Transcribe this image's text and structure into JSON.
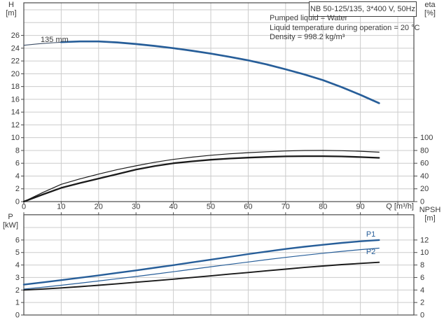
{
  "header": {
    "title_box": "NB 50-125/135, 3*400 V, 50Hz",
    "info_lines": [
      "Pumped liquid = Water",
      "Liquid temperature during operation = 20 °C",
      "Density = 998.2 kg/m³"
    ]
  },
  "labels": {
    "h_axis_1": "H",
    "h_axis_2": "[m]",
    "eta_axis_1": "eta",
    "eta_axis_2": "[%]",
    "p_axis_1": "P",
    "p_axis_2": "[kW]",
    "npsh_axis_1": "NPSH",
    "npsh_axis_2": "[m]",
    "q_axis": "Q [m³/h]"
  },
  "colors": {
    "blue": "#275e99",
    "blue_thin_lead": "#3d4e66",
    "black": "#1a1a1a",
    "grid": "#cccccc",
    "frame": "#4b4b4b",
    "text": "#3a3a3a"
  },
  "chart_data": [
    {
      "type": "line",
      "title": "Pump head and efficiency curves",
      "x_axis": {
        "label": "Q [m³/h]",
        "min": 0,
        "max": 104.3,
        "grid_values": [
          10,
          20,
          30,
          40,
          50,
          60,
          70,
          80,
          90,
          100
        ],
        "tick_values": [
          0,
          10,
          20,
          30,
          40,
          50,
          60,
          70,
          80,
          90,
          100
        ],
        "tick_labels": [
          "0",
          "10",
          "20",
          "30",
          "40",
          "50",
          "60",
          "70",
          "80",
          "90"
        ]
      },
      "y_left": {
        "label": "H [m]",
        "min": 0,
        "max": 31.1,
        "grid_values": [
          2,
          4,
          6,
          8,
          10,
          12,
          14,
          16,
          18,
          20,
          22,
          24,
          26,
          28,
          30
        ],
        "tick_values": [
          0,
          2,
          4,
          6,
          8,
          10,
          12,
          14,
          16,
          18,
          20,
          22,
          24,
          26
        ],
        "tick_labels": [
          "0",
          "2",
          "4",
          "6",
          "8",
          "10",
          "12",
          "14",
          "16",
          "18",
          "20",
          "22",
          "24",
          "26"
        ]
      },
      "y_right": {
        "label": "eta [%]",
        "min": 0,
        "max": 100,
        "value_to_left_scale": 10,
        "tick_values": [
          0,
          20,
          40,
          60,
          80,
          100
        ],
        "tick_labels": [
          "0",
          "20",
          "40",
          "60",
          "80",
          "100"
        ]
      },
      "series": [
        {
          "name": "head-lead",
          "axis": "left",
          "color": "#3d4e66",
          "width": 1.1,
          "points": [
            [
              0,
              24.45
            ],
            [
              4,
              24.68
            ],
            [
              8,
              24.86
            ],
            [
              12,
              24.98
            ],
            [
              15,
              25.05
            ]
          ]
        },
        {
          "name": "head-135mm",
          "axis": "left",
          "color": "#275e99",
          "width": 2.7,
          "points": [
            [
              10,
              24.95
            ],
            [
              15,
              25.05
            ],
            [
              20,
              25.05
            ],
            [
              25,
              24.9
            ],
            [
              30,
              24.65
            ],
            [
              35,
              24.35
            ],
            [
              40,
              24.0
            ],
            [
              45,
              23.6
            ],
            [
              50,
              23.15
            ],
            [
              55,
              22.65
            ],
            [
              60,
              22.1
            ],
            [
              65,
              21.45
            ],
            [
              70,
              20.7
            ],
            [
              75,
              19.9
            ],
            [
              80,
              19.0
            ],
            [
              85,
              17.9
            ],
            [
              90,
              16.7
            ],
            [
              95,
              15.4
            ]
          ]
        },
        {
          "name": "eta-pump",
          "axis": "right",
          "color": "#1a1a1a",
          "width": 1.2,
          "points": [
            [
              0,
              0
            ],
            [
              5,
              14
            ],
            [
              10,
              27
            ],
            [
              15,
              35.5
            ],
            [
              20,
              43
            ],
            [
              25,
              50
            ],
            [
              30,
              56
            ],
            [
              35,
              61.5
            ],
            [
              40,
              66
            ],
            [
              45,
              69.5
            ],
            [
              50,
              72.5
            ],
            [
              55,
              74.8
            ],
            [
              60,
              76.6
            ],
            [
              65,
              78
            ],
            [
              70,
              79.2
            ],
            [
              75,
              79.9
            ],
            [
              80,
              80
            ],
            [
              85,
              79.6
            ],
            [
              90,
              78.7
            ],
            [
              95,
              77.3
            ]
          ]
        },
        {
          "name": "eta-pump-motor",
          "axis": "right",
          "color": "#1a1a1a",
          "width": 2.3,
          "points": [
            [
              0,
              0
            ],
            [
              5,
              11
            ],
            [
              10,
              21.5
            ],
            [
              15,
              29
            ],
            [
              20,
              36
            ],
            [
              25,
              43
            ],
            [
              30,
              50
            ],
            [
              35,
              55.5
            ],
            [
              40,
              60
            ],
            [
              45,
              63
            ],
            [
              50,
              65.5
            ],
            [
              55,
              67.4
            ],
            [
              60,
              68.8
            ],
            [
              65,
              69.9
            ],
            [
              70,
              70.7
            ],
            [
              75,
              71.1
            ],
            [
              80,
              71.1
            ],
            [
              85,
              70.6
            ],
            [
              90,
              69.7
            ],
            [
              95,
              68.4
            ]
          ]
        }
      ],
      "annotations": [
        {
          "text": "135 mm",
          "q": 4.5,
          "v": 25.35,
          "axis": "left",
          "anchor": "start",
          "color": "#3a3a3a"
        }
      ]
    },
    {
      "type": "line",
      "title": "Power and NPSH curves",
      "x_axis": {
        "label": "",
        "min": 0,
        "max": 104.3,
        "grid_values": [
          10,
          20,
          30,
          40,
          50,
          60,
          70,
          80,
          90,
          100
        ],
        "tick_values": [
          0,
          10,
          20,
          30,
          40,
          50,
          60,
          70,
          80,
          90,
          100
        ],
        "tick_labels": []
      },
      "y_left": {
        "label": "P [kW]",
        "min": 0,
        "max": 8.02,
        "grid_values": [
          1,
          2,
          3,
          4,
          5,
          6,
          7
        ],
        "tick_values": [
          0,
          1,
          2,
          3,
          4,
          5,
          6
        ],
        "tick_labels": [
          "0",
          "1",
          "2",
          "3",
          "4",
          "5",
          "6"
        ]
      },
      "y_right": {
        "label": "NPSH [m]",
        "min": 0,
        "max": 16,
        "value_to_left_scale": 2,
        "tick_values": [
          0,
          2,
          4,
          6,
          8,
          10,
          12
        ],
        "tick_labels": [
          "0",
          "2",
          "4",
          "6",
          "8",
          "10",
          "12"
        ]
      },
      "series": [
        {
          "name": "p1",
          "axis": "left",
          "color": "#275e99",
          "width": 2.4,
          "points": [
            [
              0,
              2.43
            ],
            [
              5,
              2.61
            ],
            [
              10,
              2.79
            ],
            [
              15,
              2.98
            ],
            [
              20,
              3.17
            ],
            [
              25,
              3.37
            ],
            [
              30,
              3.57
            ],
            [
              35,
              3.78
            ],
            [
              40,
              3.99
            ],
            [
              45,
              4.21
            ],
            [
              50,
              4.43
            ],
            [
              55,
              4.65
            ],
            [
              60,
              4.87
            ],
            [
              65,
              5.08
            ],
            [
              70,
              5.28
            ],
            [
              75,
              5.46
            ],
            [
              80,
              5.62
            ],
            [
              85,
              5.77
            ],
            [
              90,
              5.9
            ],
            [
              95,
              6.0
            ]
          ]
        },
        {
          "name": "p2",
          "axis": "left",
          "color": "#275e99",
          "width": 1.2,
          "points": [
            [
              0,
              2.07
            ],
            [
              5,
              2.22
            ],
            [
              10,
              2.38
            ],
            [
              15,
              2.55
            ],
            [
              20,
              2.72
            ],
            [
              25,
              2.9
            ],
            [
              30,
              3.08
            ],
            [
              35,
              3.27
            ],
            [
              40,
              3.46
            ],
            [
              45,
              3.66
            ],
            [
              50,
              3.86
            ],
            [
              55,
              4.05
            ],
            [
              60,
              4.24
            ],
            [
              65,
              4.43
            ],
            [
              70,
              4.61
            ],
            [
              75,
              4.78
            ],
            [
              80,
              4.94
            ],
            [
              85,
              5.09
            ],
            [
              90,
              5.23
            ],
            [
              95,
              5.35
            ]
          ]
        },
        {
          "name": "npsh",
          "axis": "right",
          "color": "#1a1a1a",
          "width": 1.9,
          "points": [
            [
              0,
              4.0
            ],
            [
              5,
              4.16
            ],
            [
              10,
              4.34
            ],
            [
              15,
              4.54
            ],
            [
              20,
              4.76
            ],
            [
              25,
              5.0
            ],
            [
              30,
              5.24
            ],
            [
              35,
              5.48
            ],
            [
              40,
              5.74
            ],
            [
              45,
              6.0
            ],
            [
              50,
              6.26
            ],
            [
              55,
              6.54
            ],
            [
              60,
              6.8
            ],
            [
              65,
              7.08
            ],
            [
              70,
              7.34
            ],
            [
              75,
              7.6
            ],
            [
              80,
              7.84
            ],
            [
              85,
              8.06
            ],
            [
              90,
              8.26
            ],
            [
              95,
              8.44
            ]
          ]
        }
      ],
      "annotations": [
        {
          "text": "P1",
          "q": 92.8,
          "v": 6.48,
          "axis": "left",
          "anchor": "middle",
          "color": "#275e99"
        },
        {
          "text": "P2",
          "q": 92.8,
          "v": 5.07,
          "axis": "left",
          "anchor": "middle",
          "color": "#275e99"
        }
      ]
    }
  ]
}
